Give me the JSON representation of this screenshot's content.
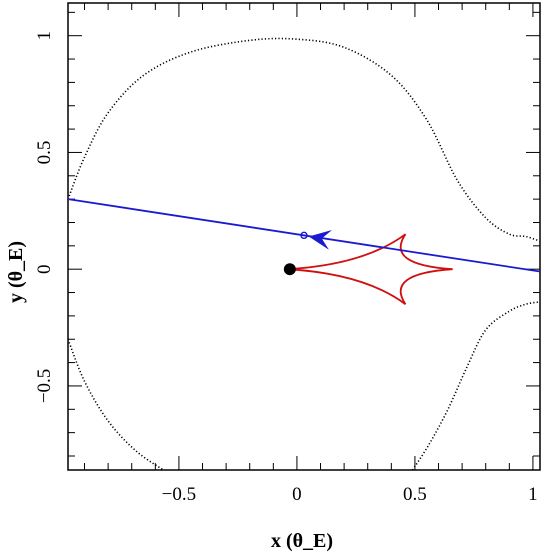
{
  "chart_data": {
    "type": "scatter",
    "xlabel": "x (θ_E)",
    "ylabel": "y (θ_E)",
    "xlim": [
      -0.97,
      1.03
    ],
    "ylim": [
      -0.86,
      1.14
    ],
    "xticks": [
      -0.5,
      0,
      0.5,
      1
    ],
    "xtick_labels": [
      "−0.5",
      "0",
      "0.5",
      "1"
    ],
    "yticks": [
      -0.5,
      0,
      0.5,
      1
    ],
    "ytick_labels": [
      "−0.5",
      "0",
      "0.5",
      "1"
    ],
    "critical_curve_color": "#000000",
    "caustic_color": "#d01010",
    "trajectory_color": "#1a1ad0",
    "lens_position": {
      "x": -0.03,
      "y": 0.0
    },
    "trajectory": {
      "x1": -0.97,
      "y1": 0.3,
      "x2": 1.03,
      "y2": -0.01
    },
    "source_marker": {
      "x": 0.03,
      "y": 0.145
    },
    "arrow_tip": {
      "x": 0.05,
      "y": 0.14
    },
    "caustic_cusps": [
      {
        "x": 0.66,
        "y": 0.0
      },
      {
        "x": 0.46,
        "y": 0.15
      },
      {
        "x": -0.04,
        "y": 0.0
      },
      {
        "x": 0.46,
        "y": -0.15
      }
    ],
    "critical_curve_left": [
      [
        -0.97,
        0.3
      ],
      [
        -0.9,
        0.48
      ],
      [
        -0.8,
        0.67
      ],
      [
        -0.65,
        0.83
      ],
      [
        -0.45,
        0.93
      ],
      [
        -0.2,
        0.98
      ],
      [
        0.0,
        0.985
      ],
      [
        0.2,
        0.95
      ],
      [
        0.4,
        0.83
      ],
      [
        0.55,
        0.64
      ],
      [
        0.68,
        0.38
      ],
      [
        0.8,
        0.22
      ],
      [
        0.9,
        0.15
      ],
      [
        0.97,
        0.14
      ],
      [
        1.03,
        0.12
      ]
    ],
    "critical_curve_lower_left": [
      [
        -0.97,
        -0.3
      ],
      [
        -0.9,
        -0.48
      ],
      [
        -0.8,
        -0.65
      ],
      [
        -0.68,
        -0.78
      ],
      [
        -0.55,
        -0.87
      ]
    ],
    "critical_curve_lower_right": [
      [
        0.49,
        -0.86
      ],
      [
        0.56,
        -0.75
      ],
      [
        0.64,
        -0.6
      ],
      [
        0.72,
        -0.42
      ],
      [
        0.8,
        -0.26
      ],
      [
        0.9,
        -0.18
      ],
      [
        0.97,
        -0.15
      ],
      [
        1.03,
        -0.14
      ]
    ]
  }
}
